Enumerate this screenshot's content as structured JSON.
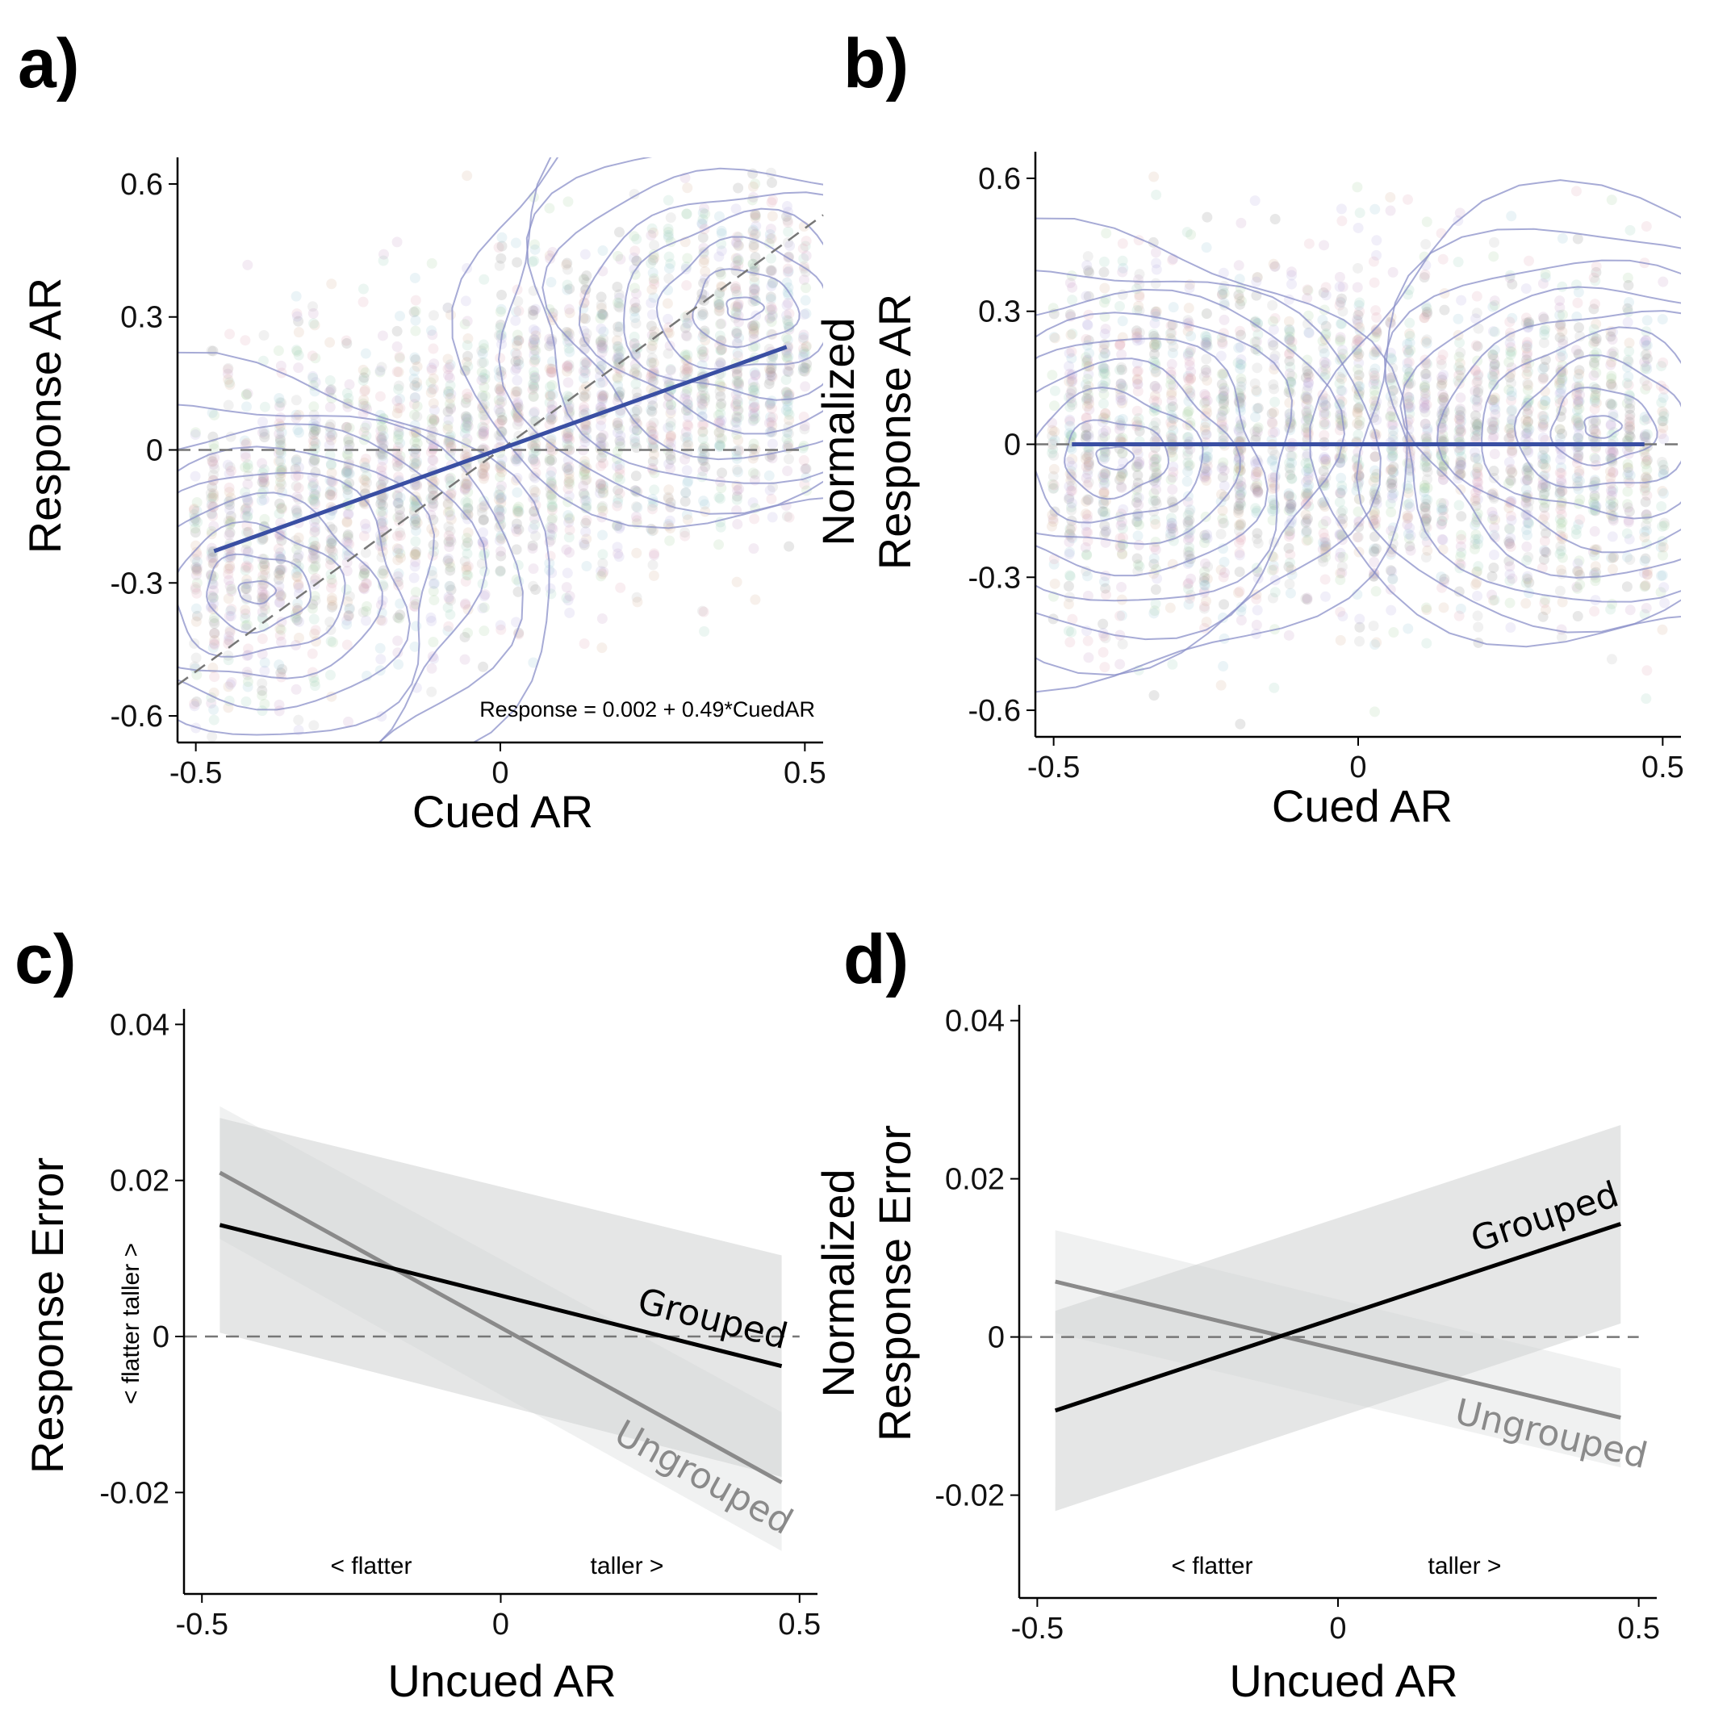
{
  "colors": {
    "fit_line": "#3a4fa3",
    "contour": "#8a8fc8",
    "grouped": "#000000",
    "ungrouped": "#8a8a8a",
    "band_grouped": "#cfd1d1",
    "band_ungrouped": "#e4e6e6",
    "reference": "#777777"
  },
  "chart_data": [
    {
      "panel": "a)",
      "type": "scatter",
      "xlabel": "Cued AR",
      "ylabel": "Response AR",
      "xlim": [
        -0.53,
        0.53
      ],
      "ylim": [
        -0.66,
        0.66
      ],
      "xticks": [
        -0.5,
        0,
        0.5
      ],
      "xtick_labels": [
        "-0.5",
        "0",
        "0.5"
      ],
      "yticks": [
        -0.6,
        -0.3,
        0,
        0.3,
        0.6
      ],
      "ytick_labels": [
        "-0.6",
        "-0.3",
        "0",
        "0.3",
        "0.6"
      ],
      "scatter_x_range": [
        -0.5,
        0.5
      ],
      "density_peaks": [
        [
          -0.4,
          -0.32
        ],
        [
          0.4,
          0.32
        ]
      ],
      "fit": {
        "intercept": 0.002,
        "slope": 0.49,
        "x_range": [
          -0.47,
          0.47
        ]
      },
      "identity_line": true,
      "zero_line": true,
      "annotation": "Response = 0.002 + 0.49*CuedAR",
      "grid": false
    },
    {
      "panel": "b)",
      "type": "scatter",
      "xlabel": "Cued AR",
      "ylabel_lines": [
        "Normalized",
        "Response AR"
      ],
      "xlim": [
        -0.53,
        0.53
      ],
      "ylim": [
        -0.66,
        0.66
      ],
      "xticks": [
        -0.5,
        0,
        0.5
      ],
      "xtick_labels": [
        "-0.5",
        "0",
        "0.5"
      ],
      "yticks": [
        -0.6,
        -0.3,
        0,
        0.3,
        0.6
      ],
      "ytick_labels": [
        "-0.6",
        "-0.3",
        "0",
        "0.3",
        "0.6"
      ],
      "scatter_x_range": [
        -0.5,
        0.5
      ],
      "density_peaks": [
        [
          -0.4,
          -0.03
        ],
        [
          0.4,
          0.04
        ]
      ],
      "fit": {
        "intercept": 0.0,
        "slope": 0.0,
        "x_range": [
          -0.47,
          0.47
        ]
      },
      "zero_line": true,
      "grid": false
    },
    {
      "panel": "c)",
      "type": "line",
      "xlabel": "Uncued AR",
      "ylabel": "Response Error",
      "xlim": [
        -0.53,
        0.53
      ],
      "ylim": [
        -0.033,
        0.042
      ],
      "xticks": [
        -0.5,
        0,
        0.5
      ],
      "xtick_labels": [
        "-0.5",
        "0",
        "0.5"
      ],
      "yticks": [
        -0.02,
        0,
        0.02,
        0.04
      ],
      "ytick_labels": [
        "-0.02",
        "0",
        "0.02",
        "0.04"
      ],
      "zero_line": true,
      "inset_x": [
        "<  flatter",
        "taller  >"
      ],
      "inset_y": "<  flatter     taller  >",
      "series": [
        {
          "name": "Ungrouped",
          "x": [
            -0.47,
            0.47
          ],
          "y": [
            0.021,
            -0.0187
          ],
          "ci_lower": [
            0.0125,
            -0.0275
          ],
          "ci_upper": [
            0.0295,
            -0.0097
          ]
        },
        {
          "name": "Grouped",
          "x": [
            -0.47,
            0.47
          ],
          "y": [
            0.0143,
            -0.0038
          ],
          "ci_lower": [
            0.0005,
            -0.018
          ],
          "ci_upper": [
            0.028,
            0.0104
          ]
        }
      ],
      "grid": false
    },
    {
      "panel": "d)",
      "type": "line",
      "xlabel": "Uncued AR",
      "ylabel_lines": [
        "Normalized",
        "Response Error"
      ],
      "xlim": [
        -0.53,
        0.53
      ],
      "ylim": [
        -0.033,
        0.042
      ],
      "xticks": [
        -0.5,
        0,
        0.5
      ],
      "xtick_labels": [
        "-0.5",
        "0",
        "0.5"
      ],
      "yticks": [
        -0.02,
        0,
        0.02,
        0.04
      ],
      "ytick_labels": [
        "-0.02",
        "0",
        "0.02",
        "0.04"
      ],
      "zero_line": true,
      "inset_x": [
        "<  flatter",
        "taller  >"
      ],
      "series": [
        {
          "name": "Ungrouped",
          "x": [
            -0.47,
            0.47
          ],
          "y": [
            0.007,
            -0.0102
          ],
          "ci_lower": [
            0.0005,
            -0.0165
          ],
          "ci_upper": [
            0.0135,
            -0.004
          ]
        },
        {
          "name": "Grouped",
          "x": [
            -0.47,
            0.47
          ],
          "y": [
            -0.0093,
            0.0143
          ],
          "ci_lower": [
            -0.022,
            0.0017
          ],
          "ci_upper": [
            0.0033,
            0.0268
          ]
        }
      ],
      "grid": false
    }
  ]
}
